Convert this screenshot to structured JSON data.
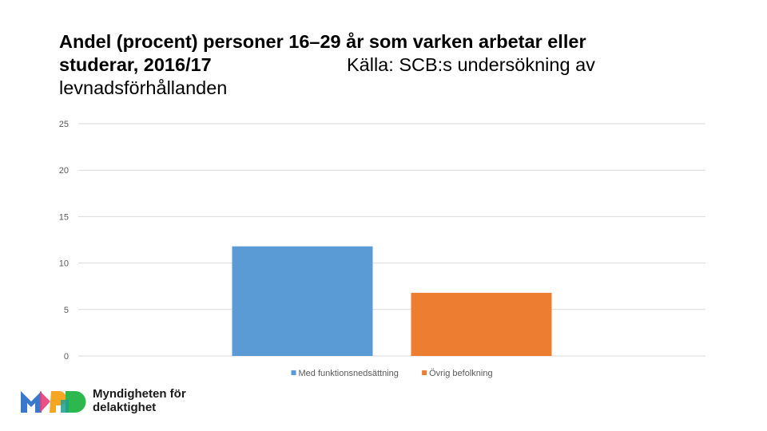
{
  "header": {
    "title_line1": "Andel (procent) personer 16–29 år som varken arbetar eller",
    "title_line2": "studerar, 2016/17",
    "source_line2": "Källa: SCB:s undersökning av",
    "source_line3": "levnadsförhållanden"
  },
  "chart_data": {
    "type": "bar",
    "title": "Andel (procent) personer 16–29 år som varken arbetar eller studerar, 2016/17",
    "xlabel": "",
    "ylabel": "",
    "ylim": [
      0,
      25
    ],
    "yticks": [
      0,
      5,
      10,
      15,
      20,
      25
    ],
    "grid": true,
    "legend_position": "bottom",
    "series": [
      {
        "name": "Med funktionsnedsättning",
        "values": [
          11.8
        ],
        "color": "#5b9bd5"
      },
      {
        "name": "Övrig befolkning",
        "values": [
          6.8
        ],
        "color": "#ed7d31"
      }
    ]
  },
  "logo": {
    "text_line1": "Myndigheten för",
    "text_line2": "delaktighet",
    "colors": [
      "#3a78c9",
      "#e63d7a",
      "#f5a623",
      "#2db84d"
    ]
  }
}
